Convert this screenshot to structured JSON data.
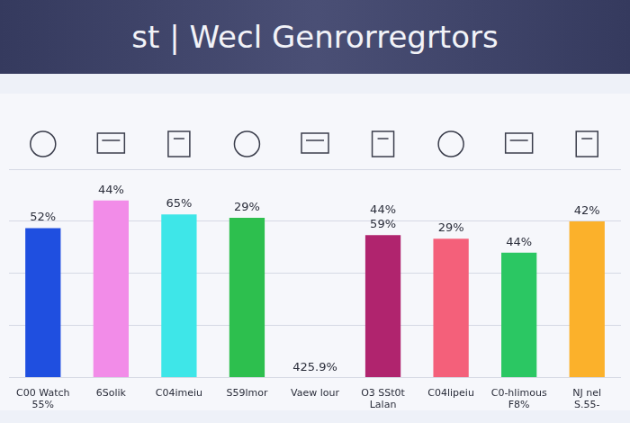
{
  "chart_data": {
    "type": "bar",
    "title": "st | Wecl Genrorregrtors",
    "categories": [
      "C00 Watch",
      "6Solik",
      "C04imeiu",
      "S59lmor",
      "Vaew lour",
      "O3 SSt0t",
      "C04lipeiu",
      "C0-hlimous",
      "NJ nel"
    ],
    "sub_labels": [
      "55%",
      null,
      null,
      null,
      null,
      "Lalan",
      null,
      "F8%",
      "S.55-"
    ],
    "top_labels": [
      "52%",
      "44%",
      "65%",
      "29%",
      "425.9%",
      [
        "44%",
        "59%"
      ],
      "29%",
      "44%",
      "42%"
    ],
    "values": [
      43,
      51,
      47,
      46,
      null,
      41,
      40,
      36,
      45
    ],
    "colors": [
      "#1f4fe0",
      "#f28ce8",
      "#3ee6e8",
      "#2dbf4e",
      "#9e9e9e",
      "#b0246e",
      "#f4607a",
      "#2bc763",
      "#fbb12b"
    ],
    "ylim": [
      0,
      60
    ],
    "yticks": [
      0,
      15,
      30,
      45,
      60
    ],
    "grid": true,
    "tick_labels": "x"
  }
}
